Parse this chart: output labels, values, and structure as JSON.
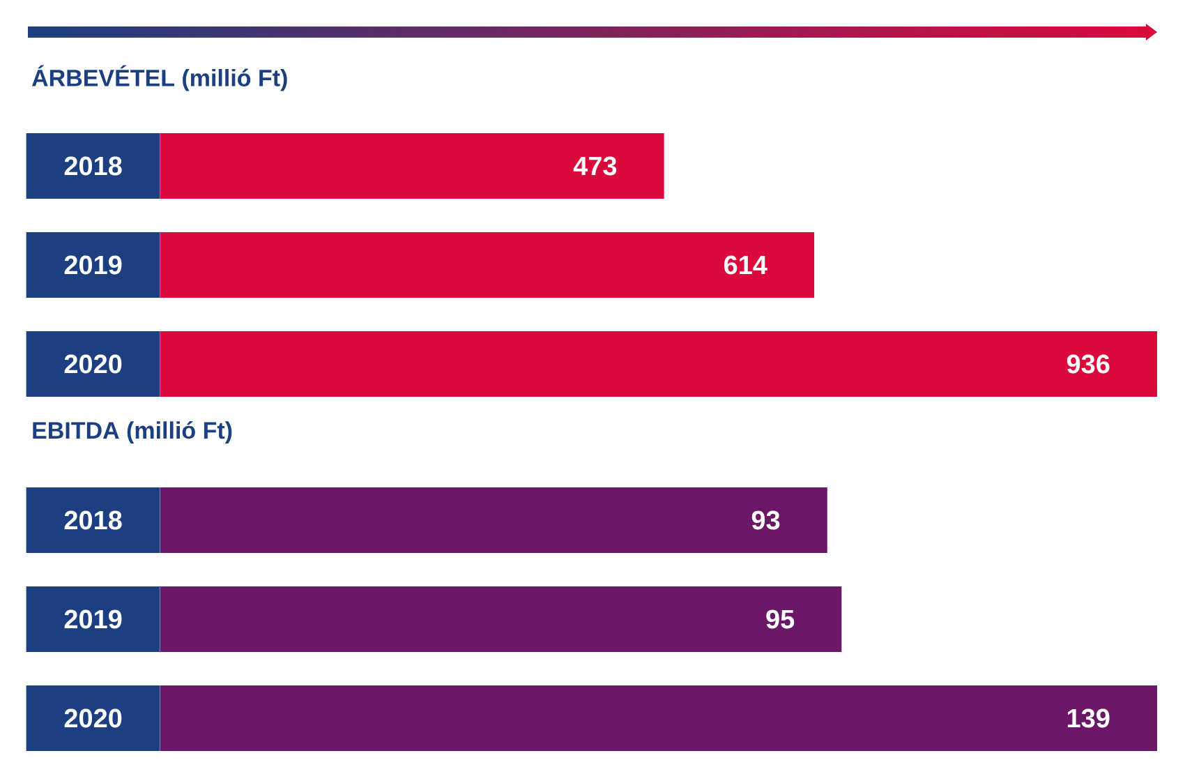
{
  "chart_data": [
    {
      "type": "bar",
      "orientation": "horizontal",
      "title": "ÁRBEVÉTEL (millió Ft)",
      "categories": [
        "2018",
        "2019",
        "2020"
      ],
      "values": [
        473,
        614,
        936
      ],
      "color": "#dc0a3c",
      "data_labels": true
    },
    {
      "type": "bar",
      "orientation": "horizontal",
      "title": "EBITDA (millió Ft)",
      "categories": [
        "2018",
        "2019",
        "2020"
      ],
      "values": [
        93,
        95,
        139
      ],
      "color": "#6b1767",
      "data_labels": true
    }
  ]
}
